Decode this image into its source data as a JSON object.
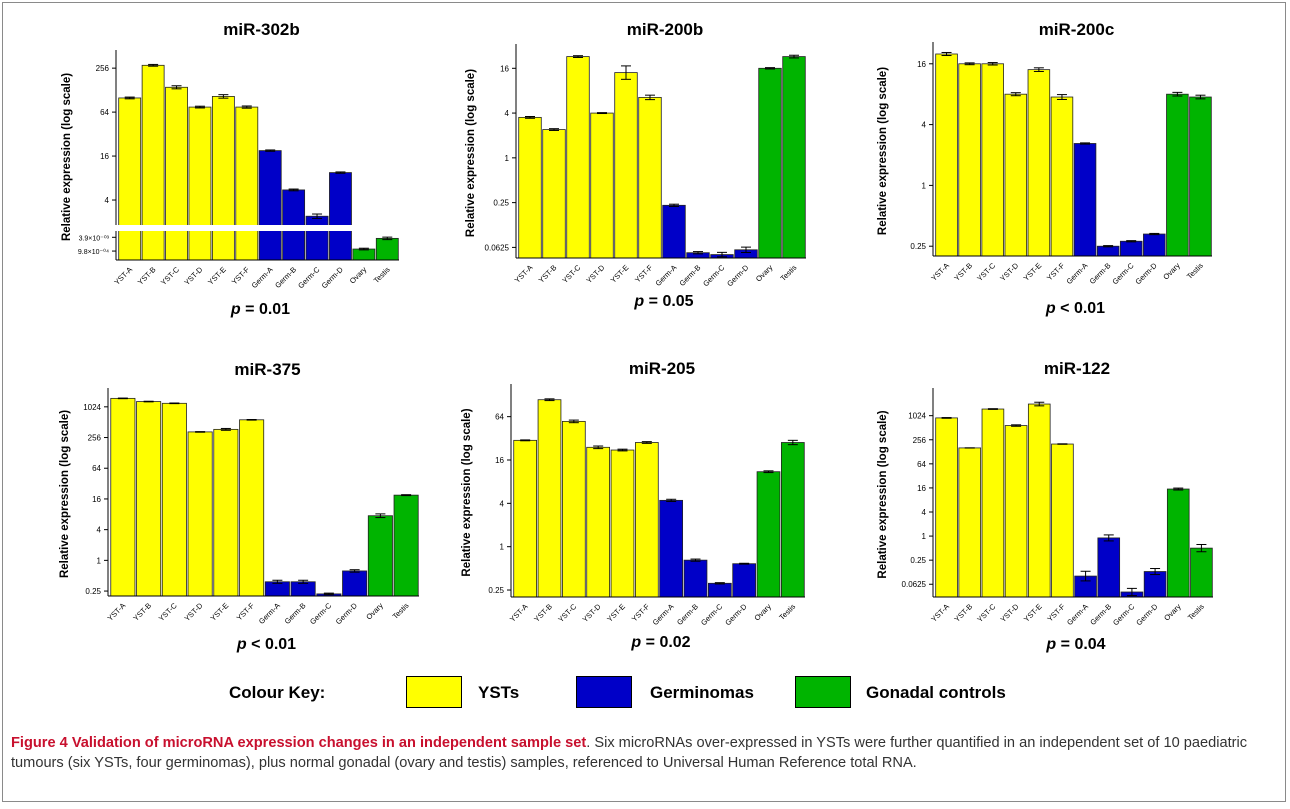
{
  "colors": {
    "yst": "#ffff00",
    "germinoma": "#0000c8",
    "gonadal": "#00b400"
  },
  "categories": [
    "YST-A",
    "YST-B",
    "YST-C",
    "YST-D",
    "YST-E",
    "YST-F",
    "Germ-A",
    "Germ-B",
    "Germ-C",
    "Germ-D",
    "Ovary",
    "Testis"
  ],
  "chart_data": [
    {
      "type": "bar",
      "title": "miR-302b",
      "ylabel": "Relative expression (log scale)",
      "scale": "log2",
      "ylim": [
        0.0001,
        400
      ],
      "broken_axis": true,
      "yticks": [
        256,
        64,
        16,
        4
      ],
      "ytick_labels": [
        "256",
        "64",
        "16",
        "4"
      ],
      "low_ticks": [
        {
          "label": "3.9×10⁻⁰³",
          "value": 0.0039
        },
        {
          "label": "9.8×10⁻⁰⁴",
          "value": 0.00098
        }
      ],
      "values": [
        100,
        280,
        140,
        75,
        105,
        75,
        19,
        5.5,
        2.4,
        9.5,
        0.0012,
        0.0035
      ],
      "errors": [
        0.04,
        0.04,
        0.07,
        0.04,
        0.08,
        0.05,
        0.03,
        0.04,
        0.1,
        0.03,
        0.12,
        0.18
      ],
      "pvalue_prefix": "p",
      "pvalue_text": " = 0.01"
    },
    {
      "type": "bar",
      "title": "miR-200b",
      "ylabel": "Relative expression (log scale)",
      "scale": "log2",
      "ylim": [
        0.045,
        30
      ],
      "yticks": [
        16,
        4,
        1,
        0.25,
        0.0625
      ],
      "ytick_labels": [
        "16",
        "4",
        "1",
        "0.25",
        "0.0625"
      ],
      "values": [
        3.5,
        2.4,
        23,
        4,
        14,
        6.5,
        0.23,
        0.053,
        0.05,
        0.058,
        16,
        23
      ],
      "errors": [
        0.04,
        0.04,
        0.04,
        0.02,
        0.3,
        0.1,
        0.05,
        0.05,
        0.1,
        0.12,
        0.03,
        0.06
      ],
      "pvalue_prefix": "p",
      "pvalue_text": " = 0.05"
    },
    {
      "type": "bar",
      "title": "miR-200c",
      "ylabel": "Relative expression (log scale)",
      "scale": "log2",
      "ylim": [
        0.2,
        24
      ],
      "yticks": [
        16,
        4,
        1,
        0.25
      ],
      "ytick_labels": [
        "16",
        "4",
        "1",
        "0.25"
      ],
      "values": [
        20,
        16,
        16,
        8,
        14,
        7.5,
        2.6,
        0.25,
        0.28,
        0.33,
        8,
        7.5
      ],
      "errors": [
        0.05,
        0.03,
        0.04,
        0.05,
        0.06,
        0.08,
        0.02,
        0.02,
        0.02,
        0.02,
        0.06,
        0.06
      ],
      "pvalue_prefix": "p",
      "pvalue_text": " < 0.01"
    },
    {
      "type": "bar",
      "title": "miR-375",
      "ylabel": "Relative expression (log scale)",
      "scale": "log2",
      "ylim": [
        0.2,
        2000
      ],
      "yticks": [
        1024,
        256,
        64,
        16,
        4,
        1,
        0.25
      ],
      "ytick_labels": [
        "1024",
        "256",
        "64",
        "16",
        "4",
        "1",
        "0.25"
      ],
      "values": [
        1500,
        1300,
        1200,
        330,
        370,
        570,
        0.38,
        0.38,
        0.22,
        0.62,
        7.5,
        19
      ],
      "errors": [
        0.02,
        0.02,
        0.02,
        0.02,
        0.06,
        0.02,
        0.1,
        0.1,
        0.05,
        0.08,
        0.12,
        0.03
      ],
      "pvalue_prefix": "p",
      "pvalue_text": " < 0.01"
    },
    {
      "type": "bar",
      "title": "miR-205",
      "ylabel": "Relative expression (log scale)",
      "scale": "log2",
      "ylim": [
        0.2,
        160
      ],
      "yticks": [
        64,
        16,
        4,
        1,
        0.25
      ],
      "ytick_labels": [
        "64",
        "16",
        "4",
        "1",
        "0.25"
      ],
      "values": [
        30,
        110,
        55,
        24,
        22,
        28,
        4.4,
        0.65,
        0.31,
        0.58,
        11,
        28
      ],
      "errors": [
        0.02,
        0.04,
        0.06,
        0.06,
        0.04,
        0.04,
        0.05,
        0.05,
        0.03,
        0.02,
        0.04,
        0.1
      ],
      "pvalue_prefix": "p",
      "pvalue_text": " = 0.02"
    },
    {
      "type": "bar",
      "title": "miR-122",
      "ylabel": "Relative expression (log scale)",
      "scale": "log2",
      "ylim": [
        0.03,
        4000
      ],
      "yticks": [
        1024,
        256,
        64,
        16,
        4,
        1,
        0.25,
        0.0625
      ],
      "ytick_labels": [
        "1024",
        "256",
        "64",
        "16",
        "4",
        "1",
        "0.25",
        "0.0625"
      ],
      "values": [
        900,
        160,
        1500,
        580,
        2000,
        200,
        0.1,
        0.9,
        0.04,
        0.13,
        15,
        0.5
      ],
      "errors": [
        0.03,
        0.01,
        0.03,
        0.06,
        0.15,
        0.02,
        0.4,
        0.25,
        0.3,
        0.25,
        0.08,
        0.3
      ],
      "pvalue_prefix": "p",
      "pvalue_text": " = 0.04"
    }
  ],
  "legend": {
    "heading": "Colour Key:",
    "yst": "YSTs",
    "germinoma": "Germinomas",
    "gonadal": "Gonadal controls"
  },
  "caption": {
    "heading": "Figure 4 Validation of microRNA expression changes in an independent sample set",
    "body": ". Six microRNAs over-expressed in YSTs were further quantified in an independent set of 10 paediatric tumours (six YSTs, four germinomas), plus normal gonadal (ovary and testis) samples, referenced to Universal Human Reference total RNA."
  }
}
